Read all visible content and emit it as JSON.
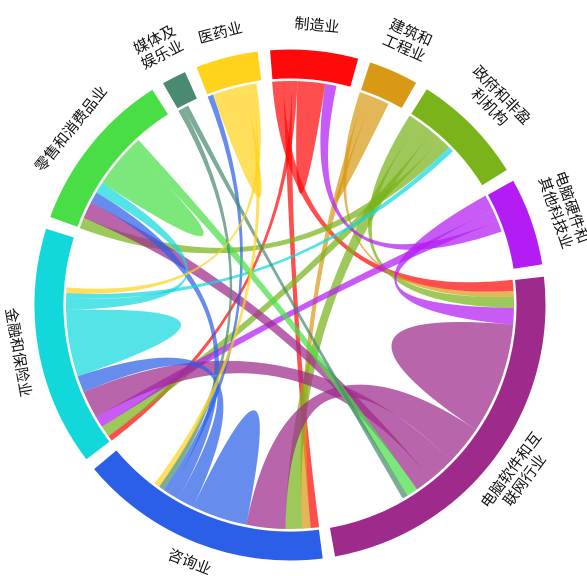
{
  "diagram": {
    "type": "chord",
    "segments": [
      {
        "id": "manufacturing",
        "label": "制造业",
        "color": "#ff0a0a",
        "value": 7
      },
      {
        "id": "construction",
        "label": "建筑和工程业",
        "label_lines": [
          "建筑和",
          "工程业"
        ],
        "color": "#d89a16",
        "value": 4
      },
      {
        "id": "government",
        "label": "政府和非盈利机构",
        "label_lines": [
          "政府和非盈",
          "利机构"
        ],
        "color": "#7ab31a",
        "value": 9
      },
      {
        "id": "electronics",
        "label": "电脑硬件和其他科技业",
        "label_lines": [
          "电脑硬件和",
          "其他科技业"
        ],
        "color": "#b31cf2",
        "value": 7
      },
      {
        "id": "software",
        "label": "电脑软件和互联网行业",
        "label_lines": [
          "电脑软件和互",
          "联网行业"
        ],
        "color": "#9e2a8c",
        "value": 30
      },
      {
        "id": "consulting",
        "label": "咨询业",
        "color": "#2b5fe8",
        "value": 20
      },
      {
        "id": "finance",
        "label": "金融和保险业",
        "color": "#12d8dc",
        "value": 19
      },
      {
        "id": "retail",
        "label": "零售和消费品业",
        "color": "#49de46",
        "value": 13
      },
      {
        "id": "media",
        "label": "媒体及娱乐业",
        "label_lines": [
          "媒体及",
          "娱乐业"
        ],
        "color": "#4a8a70",
        "value": 2
      },
      {
        "id": "pharma",
        "label": "医药业",
        "color": "#ffd21c",
        "value": 5
      }
    ],
    "flows": [
      {
        "from": "manufacturing",
        "to": "software",
        "value": 2
      },
      {
        "from": "manufacturing",
        "to": "consulting",
        "value": 1.5
      },
      {
        "from": "manufacturing",
        "to": "finance",
        "value": 1
      },
      {
        "from": "manufacturing",
        "to": "manufacturing",
        "value": 2.5
      },
      {
        "from": "construction",
        "to": "software",
        "value": 1
      },
      {
        "from": "construction",
        "to": "consulting",
        "value": 1.5
      },
      {
        "from": "construction",
        "to": "construction",
        "value": 1.5
      },
      {
        "from": "government",
        "to": "software",
        "value": 2
      },
      {
        "from": "government",
        "to": "consulting",
        "value": 3
      },
      {
        "from": "government",
        "to": "finance",
        "value": 2
      },
      {
        "from": "government",
        "to": "retail",
        "value": 2
      },
      {
        "from": "electronics",
        "to": "software",
        "value": 3
      },
      {
        "from": "electronics",
        "to": "finance",
        "value": 2
      },
      {
        "from": "electronics",
        "to": "manufacturing",
        "value": 2
      },
      {
        "from": "software",
        "to": "software",
        "value": 10
      },
      {
        "from": "software",
        "to": "consulting",
        "value": 7
      },
      {
        "from": "software",
        "to": "finance",
        "value": 5
      },
      {
        "from": "software",
        "to": "retail",
        "value": 3
      },
      {
        "from": "consulting",
        "to": "consulting",
        "value": 5
      },
      {
        "from": "consulting",
        "to": "finance",
        "value": 3
      },
      {
        "from": "consulting",
        "to": "retail",
        "value": 2
      },
      {
        "from": "consulting",
        "to": "pharma",
        "value": 1
      },
      {
        "from": "finance",
        "to": "finance",
        "value": 6
      },
      {
        "from": "finance",
        "to": "retail",
        "value": 2
      },
      {
        "from": "finance",
        "to": "government",
        "value": 1
      },
      {
        "from": "retail",
        "to": "retail",
        "value": 4
      },
      {
        "from": "retail",
        "to": "software",
        "value": 2
      },
      {
        "from": "media",
        "to": "consulting",
        "value": 1
      },
      {
        "from": "media",
        "to": "software",
        "value": 1
      },
      {
        "from": "pharma",
        "to": "pharma",
        "value": 3
      },
      {
        "from": "pharma",
        "to": "consulting",
        "value": 1
      },
      {
        "from": "pharma",
        "to": "finance",
        "value": 1
      }
    ]
  }
}
